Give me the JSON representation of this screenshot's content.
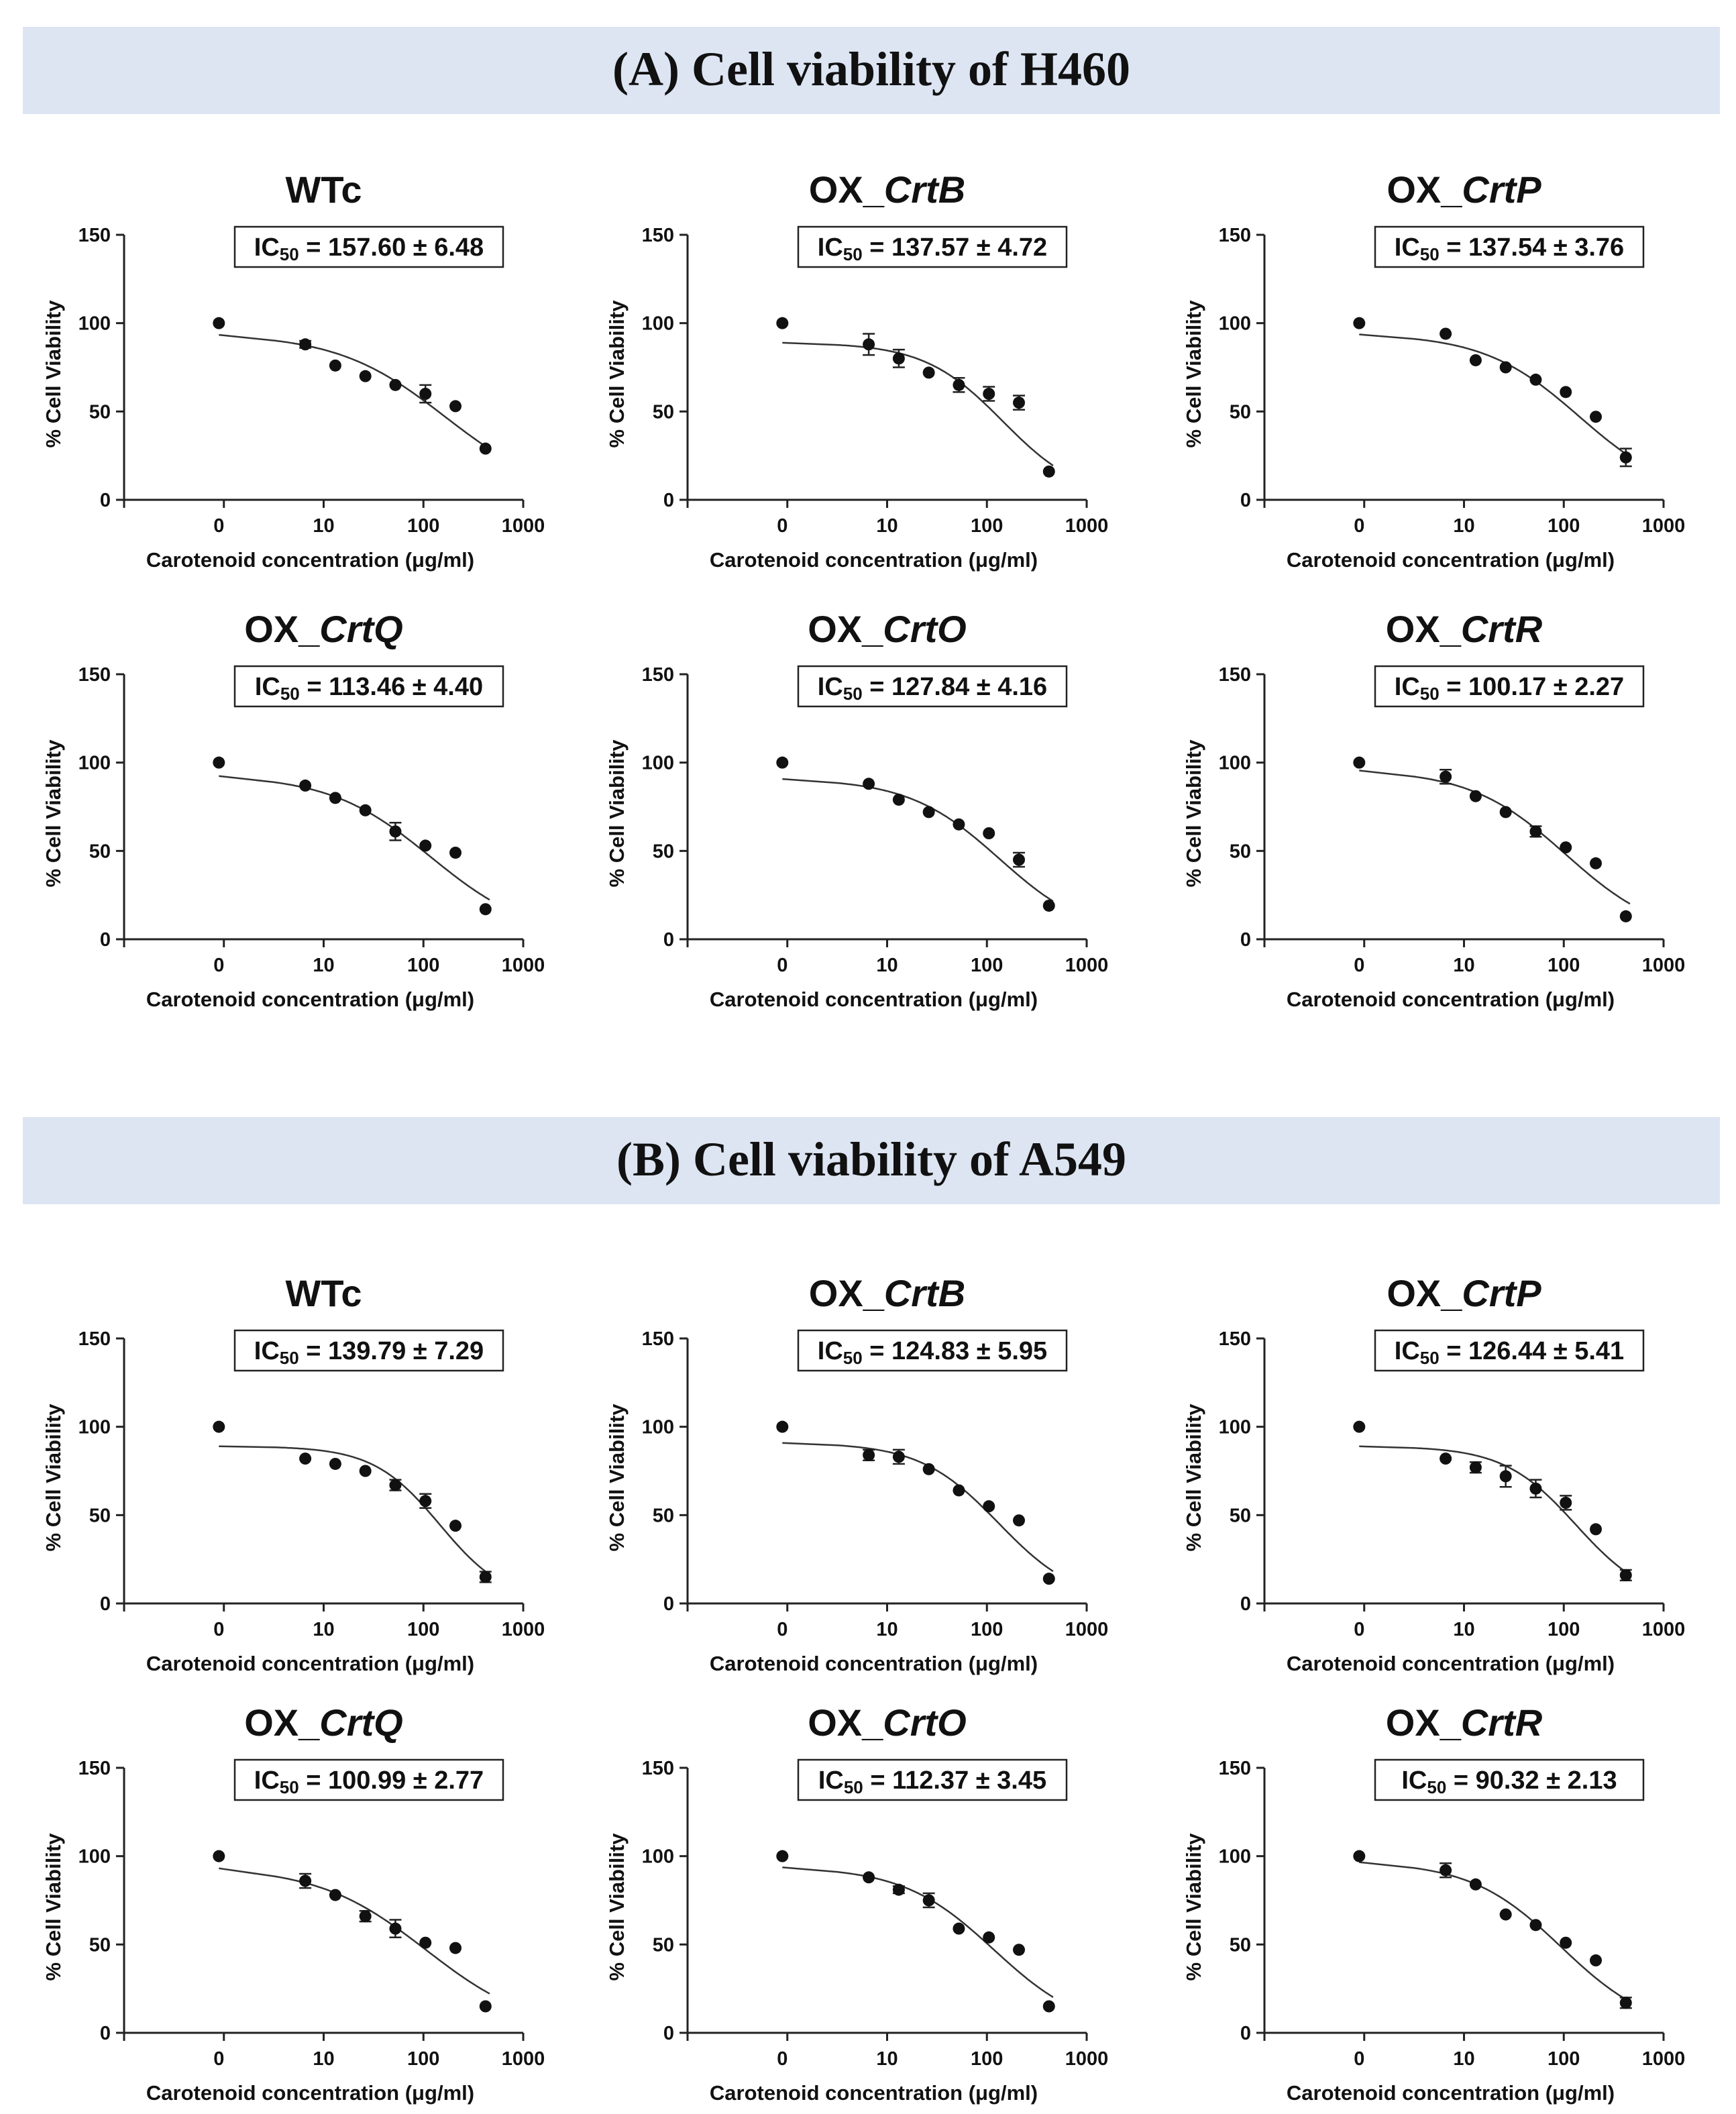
{
  "sections": [
    {
      "title": "(A) Cell viability of H460"
    },
    {
      "title": "(B) Cell viability of A549"
    }
  ],
  "chart_data": [
    {
      "id": "A-WTc",
      "section": "A",
      "type": "scatter",
      "title_main": "WTc",
      "title_italic": "",
      "ic50_label": "IC",
      "ic50_sub": "50",
      "ic50_value": " = 157.60 ± 6.48",
      "xlabel": "Carotenoid concentration (μg/ml)",
      "ylabel": "% Cell Viability",
      "xticks": [
        "0",
        "10",
        "100",
        "1000"
      ],
      "yticks": [
        "0",
        "50",
        "100",
        "150"
      ],
      "ylim": [
        0,
        150
      ],
      "x": [
        0,
        6.25,
        12.5,
        25,
        50,
        100,
        200,
        400
      ],
      "y": [
        100,
        88,
        76,
        70,
        65,
        60,
        53,
        29
      ],
      "err": [
        0,
        2,
        0,
        0,
        0,
        5,
        0,
        0
      ],
      "fit": {
        "top": 94,
        "ic50": 157.6,
        "hill": 0.8
      }
    },
    {
      "id": "A-CrtB",
      "section": "A",
      "type": "scatter",
      "title_main": "OX_",
      "title_italic": "CrtB",
      "ic50_label": "IC",
      "ic50_sub": "50",
      "ic50_value": " = 137.57 ± 4.72",
      "xlabel": "Carotenoid concentration (μg/ml)",
      "ylabel": "% Cell Viability",
      "xticks": [
        "0",
        "10",
        "100",
        "1000"
      ],
      "yticks": [
        "0",
        "50",
        "100",
        "150"
      ],
      "ylim": [
        0,
        150
      ],
      "x": [
        0,
        6.25,
        12.5,
        25,
        50,
        100,
        200,
        400
      ],
      "y": [
        100,
        88,
        80,
        72,
        65,
        60,
        55,
        16
      ],
      "err": [
        0,
        6,
        5,
        0,
        4,
        4,
        4,
        0
      ],
      "fit": {
        "top": 89,
        "ic50": 137.57,
        "hill": 1.1
      }
    },
    {
      "id": "A-CrtP",
      "section": "A",
      "type": "scatter",
      "title_main": "OX_",
      "title_italic": "CrtP",
      "ic50_label": "IC",
      "ic50_sub": "50",
      "ic50_value": " = 137.54 ± 3.76",
      "xlabel": "Carotenoid concentration (μg/ml)",
      "ylabel": "% Cell Viability",
      "xticks": [
        "0",
        "10",
        "100",
        "1000"
      ],
      "yticks": [
        "0",
        "50",
        "100",
        "150"
      ],
      "ylim": [
        0,
        150
      ],
      "x": [
        0,
        6.25,
        12.5,
        25,
        50,
        100,
        200,
        400
      ],
      "y": [
        100,
        94,
        79,
        75,
        68,
        61,
        47,
        24
      ],
      "err": [
        0,
        0,
        0,
        0,
        0,
        0,
        0,
        5
      ],
      "fit": {
        "top": 94,
        "ic50": 137.54,
        "hill": 0.9
      }
    },
    {
      "id": "A-CrtQ",
      "section": "A",
      "type": "scatter",
      "title_main": "OX_",
      "title_italic": "CrtQ",
      "ic50_label": "IC",
      "ic50_sub": "50",
      "ic50_value": " = 113.46 ± 4.40",
      "xlabel": "Carotenoid concentration (μg/ml)",
      "ylabel": "% Cell Viability",
      "xticks": [
        "0",
        "10",
        "100",
        "1000"
      ],
      "yticks": [
        "0",
        "50",
        "100",
        "150"
      ],
      "ylim": [
        0,
        150
      ],
      "x": [
        0,
        6.25,
        12.5,
        25,
        50,
        100,
        200,
        400
      ],
      "y": [
        100,
        87,
        80,
        73,
        61,
        53,
        49,
        17
      ],
      "err": [
        0,
        0,
        0,
        0,
        5,
        0,
        0,
        0
      ],
      "fit": {
        "top": 93,
        "ic50": 113.46,
        "hill": 0.85
      }
    },
    {
      "id": "A-CrtO",
      "section": "A",
      "type": "scatter",
      "title_main": "OX_",
      "title_italic": "CrtO",
      "ic50_label": "IC",
      "ic50_sub": "50",
      "ic50_value": " = 127.84 ± 4.16",
      "xlabel": "Carotenoid concentration (μg/ml)",
      "ylabel": "% Cell Viability",
      "xticks": [
        "0",
        "10",
        "100",
        "1000"
      ],
      "yticks": [
        "0",
        "50",
        "100",
        "150"
      ],
      "ylim": [
        0,
        150
      ],
      "x": [
        0,
        6.25,
        12.5,
        25,
        50,
        100,
        200,
        400
      ],
      "y": [
        100,
        88,
        79,
        72,
        65,
        60,
        45,
        19
      ],
      "err": [
        0,
        0,
        0,
        0,
        0,
        0,
        4,
        0
      ],
      "fit": {
        "top": 91,
        "ic50": 127.84,
        "hill": 0.95
      }
    },
    {
      "id": "A-CrtR",
      "section": "A",
      "type": "scatter",
      "title_main": "OX_",
      "title_italic": "CrtR",
      "ic50_label": "IC",
      "ic50_sub": "50",
      "ic50_value": " = 100.17 ± 2.27",
      "xlabel": "Carotenoid concentration (μg/ml)",
      "ylabel": "% Cell Viability",
      "xticks": [
        "0",
        "10",
        "100",
        "1000"
      ],
      "yticks": [
        "0",
        "50",
        "100",
        "150"
      ],
      "ylim": [
        0,
        150
      ],
      "x": [
        0,
        6.25,
        12.5,
        25,
        50,
        100,
        200,
        400
      ],
      "y": [
        100,
        92,
        81,
        72,
        61,
        52,
        43,
        13
      ],
      "err": [
        0,
        4,
        0,
        0,
        3,
        0,
        0,
        0
      ],
      "fit": {
        "top": 96,
        "ic50": 100.17,
        "hill": 0.9
      }
    },
    {
      "id": "B-WTc",
      "section": "B",
      "type": "scatter",
      "title_main": "WTc",
      "title_italic": "",
      "ic50_label": "IC",
      "ic50_sub": "50",
      "ic50_value": " = 139.79 ± 7.29",
      "xlabel": "Carotenoid concentration (μg/ml)",
      "ylabel": "% Cell Viability",
      "xticks": [
        "0",
        "10",
        "100",
        "1000"
      ],
      "yticks": [
        "0",
        "50",
        "100",
        "150"
      ],
      "ylim": [
        0,
        150
      ],
      "x": [
        0,
        6.25,
        12.5,
        25,
        50,
        100,
        200,
        400
      ],
      "y": [
        100,
        82,
        79,
        75,
        67,
        58,
        44,
        15
      ],
      "err": [
        0,
        0,
        0,
        0,
        3,
        4,
        0,
        3
      ],
      "fit": {
        "top": 89,
        "ic50": 139.79,
        "hill": 1.3
      }
    },
    {
      "id": "B-CrtB",
      "section": "B",
      "type": "scatter",
      "title_main": "OX_",
      "title_italic": "CrtB",
      "ic50_label": "IC",
      "ic50_sub": "50",
      "ic50_value": " = 124.83 ± 5.95",
      "xlabel": "Carotenoid concentration (μg/ml)",
      "ylabel": "% Cell Viability",
      "xticks": [
        "0",
        "10",
        "100",
        "1000"
      ],
      "yticks": [
        "0",
        "50",
        "100",
        "150"
      ],
      "ylim": [
        0,
        150
      ],
      "x": [
        0,
        6.25,
        12.5,
        25,
        50,
        100,
        200,
        400
      ],
      "y": [
        100,
        84,
        83,
        76,
        64,
        55,
        47,
        14
      ],
      "err": [
        0,
        3,
        4,
        0,
        0,
        0,
        0,
        0
      ],
      "fit": {
        "top": 91,
        "ic50": 124.83,
        "hill": 1.1
      }
    },
    {
      "id": "B-CrtP",
      "section": "B",
      "type": "scatter",
      "title_main": "OX_",
      "title_italic": "CrtP",
      "ic50_label": "IC",
      "ic50_sub": "50",
      "ic50_value": " = 126.44 ± 5.41",
      "xlabel": "Carotenoid concentration (μg/ml)",
      "ylabel": "% Cell Viability",
      "xticks": [
        "0",
        "10",
        "100",
        "1000"
      ],
      "yticks": [
        "0",
        "50",
        "100",
        "150"
      ],
      "ylim": [
        0,
        150
      ],
      "x": [
        0,
        6.25,
        12.5,
        25,
        50,
        100,
        200,
        400
      ],
      "y": [
        100,
        82,
        77,
        72,
        65,
        57,
        42,
        16
      ],
      "err": [
        0,
        0,
        3,
        6,
        5,
        4,
        0,
        3
      ],
      "fit": {
        "top": 89,
        "ic50": 126.44,
        "hill": 1.2
      }
    },
    {
      "id": "B-CrtQ",
      "section": "B",
      "type": "scatter",
      "title_main": "OX_",
      "title_italic": "CrtQ",
      "ic50_label": "IC",
      "ic50_sub": "50",
      "ic50_value": " = 100.99 ± 2.77",
      "xlabel": "Carotenoid concentration (μg/ml)",
      "ylabel": "% Cell Viability",
      "xticks": [
        "0",
        "10",
        "100",
        "1000"
      ],
      "yticks": [
        "0",
        "50",
        "100",
        "150"
      ],
      "ylim": [
        0,
        150
      ],
      "x": [
        0,
        6.25,
        12.5,
        25,
        50,
        100,
        200,
        400
      ],
      "y": [
        100,
        86,
        78,
        66,
        59,
        51,
        48,
        15
      ],
      "err": [
        0,
        4,
        0,
        3,
        5,
        0,
        0,
        0
      ],
      "fit": {
        "top": 94,
        "ic50": 100.99,
        "hill": 0.8
      }
    },
    {
      "id": "B-CrtO",
      "section": "B",
      "type": "scatter",
      "title_main": "OX_",
      "title_italic": "CrtO",
      "ic50_label": "IC",
      "ic50_sub": "50",
      "ic50_value": " = 112.37 ± 3.45",
      "xlabel": "Carotenoid concentration (μg/ml)",
      "ylabel": "% Cell Viability",
      "xticks": [
        "0",
        "10",
        "100",
        "1000"
      ],
      "yticks": [
        "0",
        "50",
        "100",
        "150"
      ],
      "ylim": [
        0,
        150
      ],
      "x": [
        0,
        6.25,
        12.5,
        25,
        50,
        100,
        200,
        400
      ],
      "y": [
        100,
        88,
        81,
        75,
        59,
        54,
        47,
        15
      ],
      "err": [
        0,
        0,
        2,
        4,
        0,
        0,
        0,
        0
      ],
      "fit": {
        "top": 94,
        "ic50": 112.37,
        "hill": 0.95
      }
    },
    {
      "id": "B-CrtR",
      "section": "B",
      "type": "scatter",
      "title_main": "OX_",
      "title_italic": "CrtR",
      "ic50_label": "IC",
      "ic50_sub": "50",
      "ic50_value": " = 90.32 ± 2.13",
      "xlabel": "Carotenoid concentration (μg/ml)",
      "ylabel": "% Cell Viability",
      "xticks": [
        "0",
        "10",
        "100",
        "1000"
      ],
      "yticks": [
        "0",
        "50",
        "100",
        "150"
      ],
      "ylim": [
        0,
        150
      ],
      "x": [
        0,
        6.25,
        12.5,
        25,
        50,
        100,
        200,
        400
      ],
      "y": [
        100,
        92,
        84,
        67,
        61,
        51,
        41,
        17
      ],
      "err": [
        0,
        4,
        0,
        0,
        0,
        0,
        0,
        3
      ],
      "fit": {
        "top": 97,
        "ic50": 90.32,
        "hill": 0.95
      }
    }
  ]
}
